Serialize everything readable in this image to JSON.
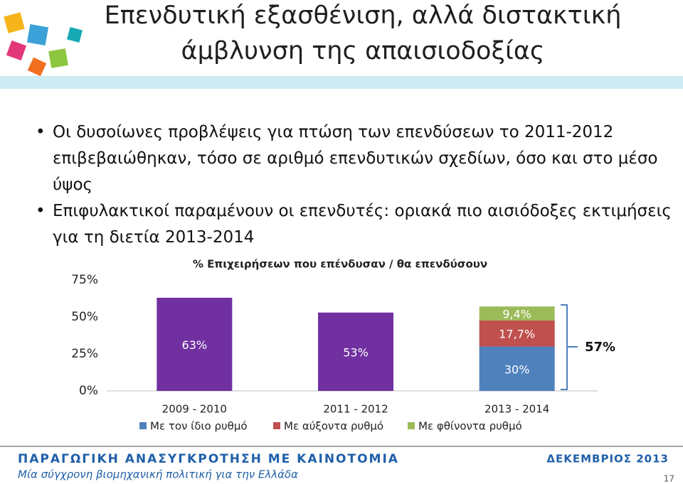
{
  "slide": {
    "title_lines": [
      "Επενδυτική εξασθένιση, αλλά διστακτική",
      "άμβλυνση της απαισιοδοξίας"
    ],
    "bullets": [
      "Οι δυσοίωνες προβλέψεις για πτώση των επενδύσεων το 2011-2012 επιβεβαιώθηκαν, τόσο σε αριθμό επενδυτικών σχεδίων, όσο και στο μέσο ύψος",
      "Επιφυλακτικοί παραμένουν οι επενδυτές: οριακά πιο αισιόδοξες εκτιμήσεις για τη διετία 2013-2014"
    ],
    "footer_title": "ΠΑΡΑΓΩΓΙΚΗ ΑΝΑΣΥΓΚΡΟΤΗΣΗ ΜΕ ΚΑΙΝΟΤΟΜΙΑ",
    "footer_subtitle": "Μία σύγχρονη βιομηχανική πολιτική για την Ελλάδα",
    "footer_date": "ΔΕΚΕΜΒΡΙΟΣ 2013",
    "page_number": "17"
  },
  "chart_data": {
    "type": "stacked_bar",
    "title": "% Επιχειρήσεων που επένδυσαν / θα επενδύσουν",
    "categories": [
      "2009 - 2010",
      "2011 - 2012",
      "2013 - 2014"
    ],
    "series": [
      {
        "name": "Με τον ίδιο ρυθμό",
        "color": "#4f81bd",
        "point_colors": [
          "#7030a0",
          "#7030a0",
          "#4f81bd"
        ],
        "values": [
          63,
          53,
          30
        ],
        "value_labels": [
          "63%",
          "53%",
          "30%"
        ]
      },
      {
        "name": "Με αύξοντα ρυθμό",
        "color": "#c0504d",
        "values": [
          null,
          null,
          17.7
        ],
        "value_labels": [
          null,
          null,
          "17,7%"
        ]
      },
      {
        "name": "Με φθίνοντα ρυθμό",
        "color": "#9bbb59",
        "values": [
          null,
          null,
          9.4
        ],
        "value_labels": [
          null,
          null,
          "9,4%"
        ]
      }
    ],
    "annotation": "57%",
    "ylim": [
      0,
      75
    ],
    "yticks": [
      {
        "value": 0,
        "label": "0%"
      },
      {
        "value": 25,
        "label": "25%"
      },
      {
        "value": 50,
        "label": "50%"
      },
      {
        "value": 75,
        "label": "75%"
      }
    ],
    "grid": false,
    "legend": "bottom"
  }
}
